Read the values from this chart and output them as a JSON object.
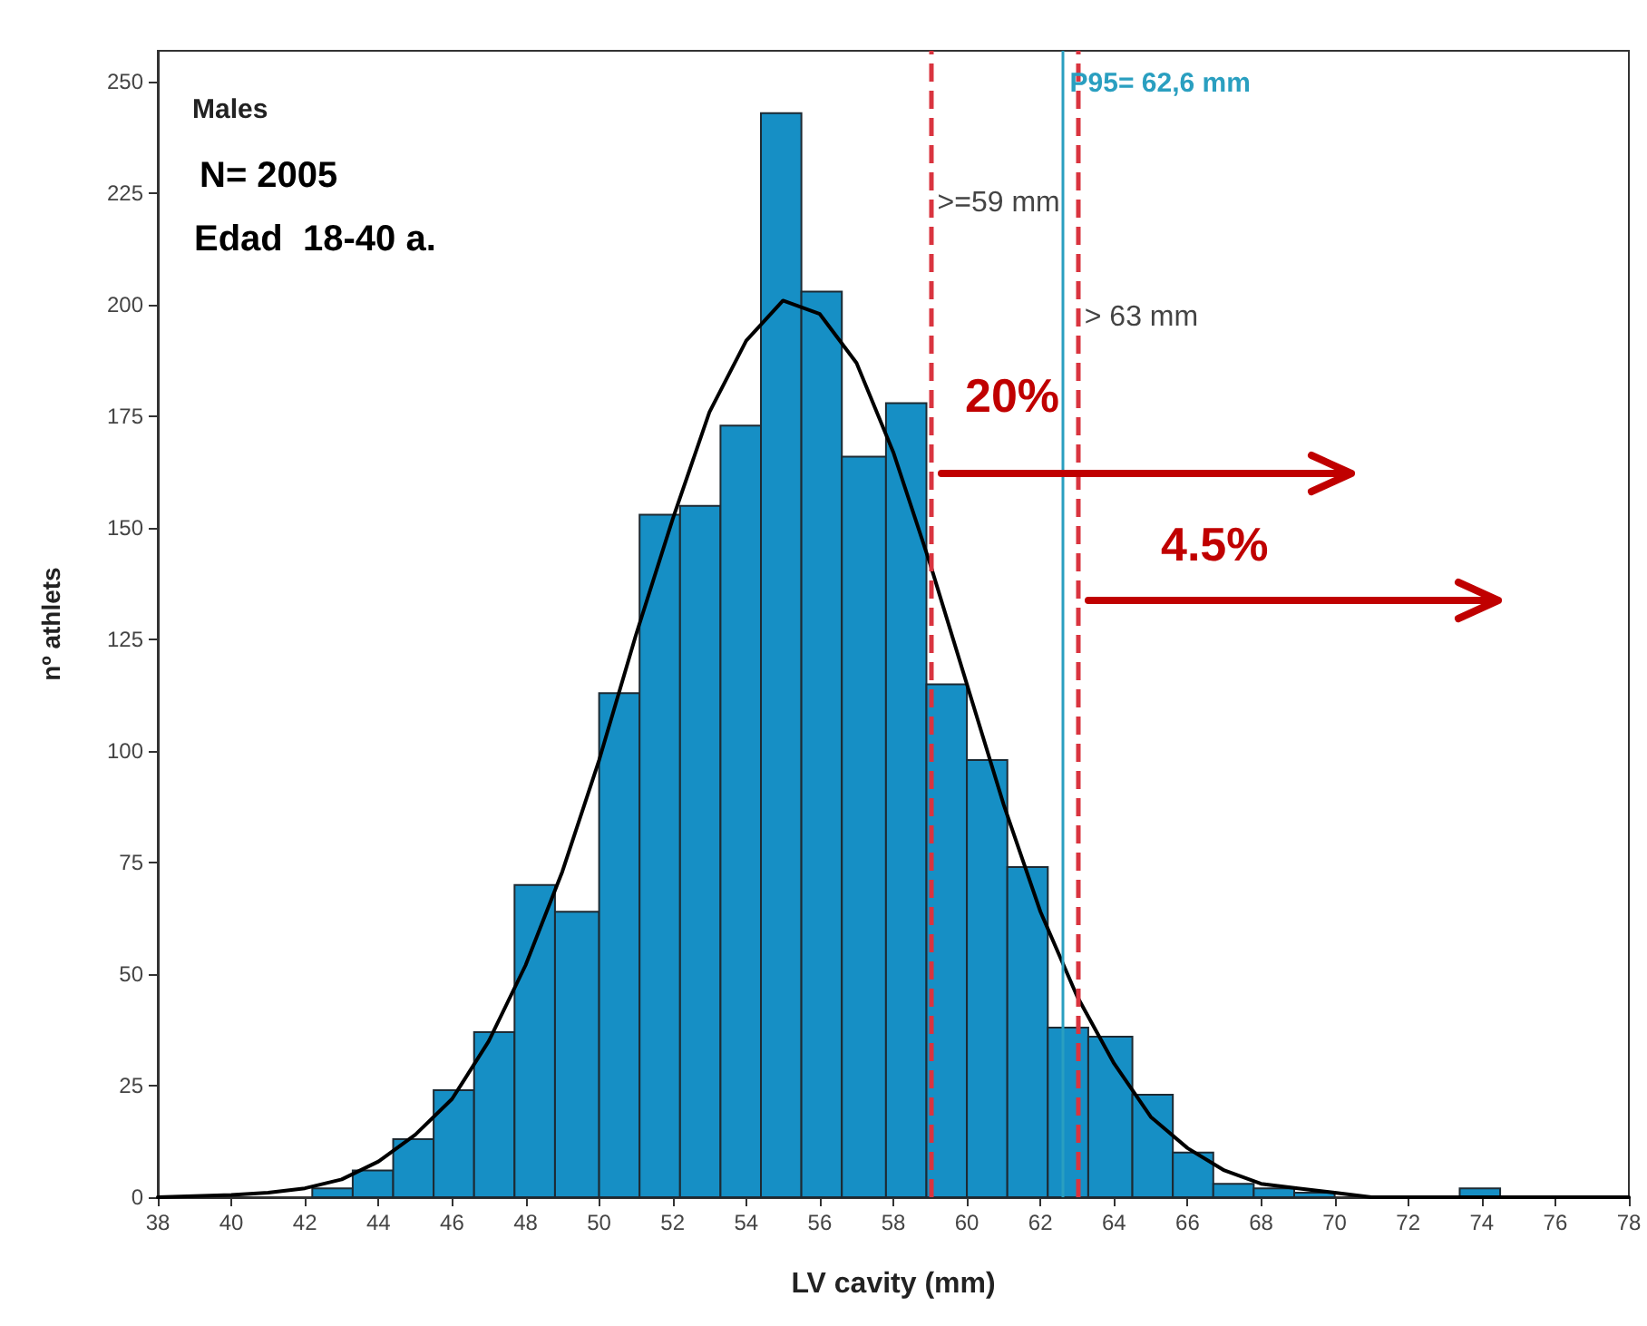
{
  "chart_data": {
    "type": "histogram",
    "xlabel": "LV cavity (mm)",
    "ylabel": "nº athlets",
    "bins": [
      42.2,
      43.3,
      44.4,
      45.5,
      46.6,
      47.7,
      48.8,
      50.0,
      51.1,
      52.2,
      53.3,
      54.4,
      55.5,
      56.6,
      57.8,
      58.9,
      60.0,
      61.1,
      62.2,
      63.3,
      64.5,
      65.6,
      66.7,
      67.8,
      68.9,
      70.0,
      73.4,
      74.5
    ],
    "values": [
      2,
      6,
      13,
      24,
      37,
      70,
      64,
      113,
      153,
      155,
      173,
      243,
      203,
      166,
      178,
      115,
      98,
      74,
      38,
      36,
      23,
      10,
      3,
      2,
      1,
      0,
      2
    ],
    "color": "#168fc5",
    "series": [
      {
        "type": "line",
        "color": "#000000",
        "x": [
          38,
          40,
          41,
          42,
          43,
          44,
          45,
          46,
          47,
          48,
          49,
          50,
          51,
          52,
          53,
          54,
          55,
          56,
          57,
          58,
          59,
          60,
          61,
          62,
          63,
          64,
          65,
          66,
          67,
          68,
          69,
          70,
          71,
          72,
          74,
          76,
          78
        ],
        "values": [
          0,
          0.5,
          1,
          2,
          4,
          8,
          14,
          22,
          35,
          52,
          73,
          98,
          126,
          152,
          176,
          192,
          201,
          198,
          187,
          167,
          142,
          115,
          88,
          64,
          45,
          30,
          18,
          11,
          6,
          3,
          2,
          1,
          0,
          0,
          0,
          0,
          0
        ]
      }
    ],
    "xlim": [
      38,
      78
    ],
    "xticks": [
      38,
      40,
      42,
      44,
      46,
      48,
      50,
      52,
      54,
      56,
      58,
      60,
      62,
      64,
      66,
      68,
      70,
      72,
      74,
      76,
      78
    ],
    "ylim": [
      0,
      257
    ],
    "yticks": [
      0,
      25,
      50,
      75,
      100,
      125,
      150,
      175,
      200,
      225,
      250
    ],
    "grid": false,
    "marker": "none",
    "ref_lines": [
      {
        "axis": "x",
        "value": 59,
        "label": ">=59 mm",
        "color": "#d9343f",
        "line_style": "dashed"
      },
      {
        "axis": "x",
        "value": 63,
        "label": "> 63 mm",
        "color": "#d9343f",
        "line_style": "dashed"
      },
      {
        "axis": "x",
        "value": 62.6,
        "label": "P95= 62,6 mm",
        "color": "#2a9fc0",
        "line_style": "solid"
      }
    ],
    "annotations": [
      "Males",
      "N= 2005",
      "Edad  18-40 a.",
      "20%",
      "4.5%"
    ]
  }
}
